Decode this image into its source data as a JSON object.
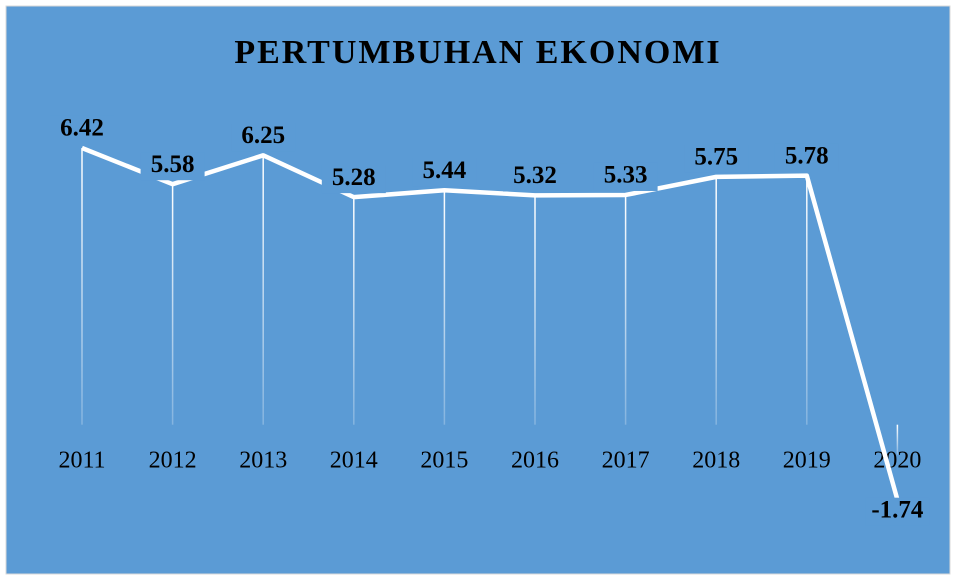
{
  "chart_data": {
    "type": "line",
    "title": "PERTUMBUHAN EKONOMI",
    "categories": [
      "2011",
      "2012",
      "2013",
      "2014",
      "2015",
      "2016",
      "2017",
      "2018",
      "2019",
      "2020"
    ],
    "values": [
      6.42,
      5.58,
      6.25,
      5.28,
      5.44,
      5.32,
      5.33,
      5.75,
      5.78,
      -1.74
    ],
    "color": "#ffffff",
    "background": "#5b9bd5",
    "drop_lines": true,
    "ylim": [
      -3,
      7
    ]
  }
}
